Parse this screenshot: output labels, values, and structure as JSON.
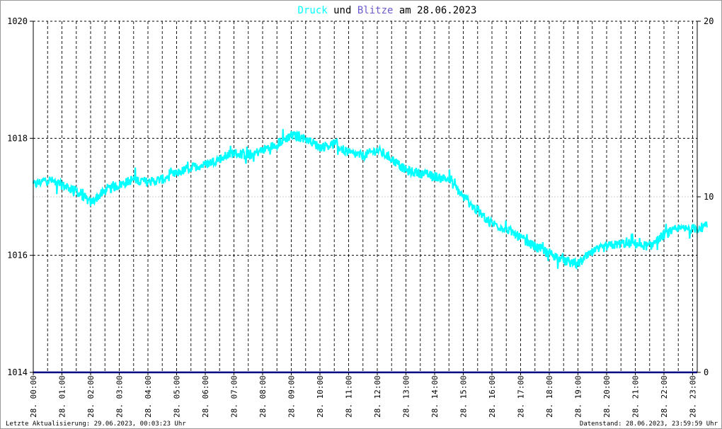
{
  "title": {
    "part1": "Druck",
    "part2": " und ",
    "part3": "Blitze",
    "part4": " am 28.06.2023",
    "color1": "#00ffff",
    "color2": "#000000",
    "color3": "#6a5acd",
    "color4": "#000000"
  },
  "footer": {
    "left": "Letzte Aktualisierung: 29.06.2023, 00:03:23 Uhr",
    "right": "Datenstand: 28.06.2023, 23:59:59 Uhr"
  },
  "chart_data": {
    "type": "line",
    "title": "Druck und Blitze am 28.06.2023",
    "xlabel": "",
    "ylabel": "",
    "x_range_hours": [
      0,
      23.5
    ],
    "x_ticks": [
      "28. 00:00",
      "28. 01:00",
      "28. 02:00",
      "28. 03:00",
      "28. 04:00",
      "28. 05:00",
      "28. 06:00",
      "28. 07:00",
      "28. 08:00",
      "28. 09:00",
      "28. 10:00",
      "28. 11:00",
      "28. 12:00",
      "28. 13:00",
      "28. 14:00",
      "28. 15:00",
      "28. 16:00",
      "28. 17:00",
      "28. 18:00",
      "28. 19:00",
      "28. 20:00",
      "28. 21:00",
      "28. 22:00",
      "28. 23:00"
    ],
    "ylim_left": [
      1014,
      1020
    ],
    "yticks_left": [
      1014,
      1016,
      1018,
      1020
    ],
    "ylim_right": [
      0,
      20
    ],
    "yticks_right": [
      0,
      10,
      20
    ],
    "grid": true,
    "series": [
      {
        "name": "Druck",
        "color": "#00ffff",
        "axis": "left",
        "x": [
          0,
          0.5,
          1,
          1.5,
          2,
          2.5,
          3,
          3.5,
          4,
          4.5,
          5,
          5.5,
          6,
          6.5,
          7,
          7.5,
          8,
          8.5,
          9,
          9.5,
          10,
          10.5,
          11,
          11.5,
          12,
          12.5,
          13,
          13.5,
          14,
          14.5,
          15,
          15.5,
          16,
          16.5,
          17,
          17.5,
          18,
          18.5,
          19,
          19.5,
          20,
          20.5,
          21,
          21.5,
          22,
          22.5,
          23,
          23.5
        ],
        "y": [
          1017.2,
          1017.3,
          1017.2,
          1017.1,
          1016.9,
          1017.1,
          1017.2,
          1017.3,
          1017.25,
          1017.3,
          1017.4,
          1017.5,
          1017.55,
          1017.65,
          1017.75,
          1017.7,
          1017.8,
          1017.9,
          1018.05,
          1018.0,
          1017.85,
          1017.9,
          1017.75,
          1017.7,
          1017.8,
          1017.65,
          1017.45,
          1017.4,
          1017.35,
          1017.3,
          1017.0,
          1016.75,
          1016.55,
          1016.45,
          1016.3,
          1016.15,
          1016.05,
          1015.9,
          1015.85,
          1016.05,
          1016.15,
          1016.2,
          1016.2,
          1016.15,
          1016.35,
          1016.45,
          1016.45,
          1016.5
        ]
      },
      {
        "name": "Blitze",
        "color": "#000080",
        "axis": "right",
        "x": [
          0,
          23.5
        ],
        "y": [
          0,
          0
        ]
      }
    ]
  }
}
